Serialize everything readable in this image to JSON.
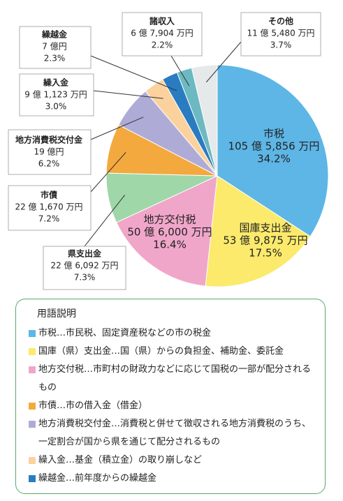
{
  "chart_data": {
    "type": "pie",
    "categories": [
      "市税",
      "国庫支出金",
      "地方交付税",
      "県支出金",
      "市債",
      "地方消費税交付金",
      "繰入金",
      "繰越金",
      "諸収入",
      "その他"
    ],
    "values": [
      34.2,
      17.5,
      16.4,
      7.3,
      7.2,
      6.2,
      3.0,
      2.3,
      2.2,
      3.7
    ],
    "value_labels": [
      "34.2%",
      "17.5%",
      "16.4%",
      "7.3%",
      "7.2%",
      "6.2%",
      "3.0%",
      "2.3%",
      "2.2%",
      "3.7%"
    ],
    "amount_labels": [
      "105 億 5,856 万円",
      "53 億 9,875 万円",
      "50 億 6,000 万円",
      "22 億 6,092 万円",
      "22 億 1,670 万円",
      "19 億円",
      "9 億 1,123 万円",
      "7 億円",
      "6 億 7,904 万円",
      "11 億 5,480 万円"
    ],
    "colors": [
      "#5db6e6",
      "#fbea6c",
      "#f0a6c9",
      "#9fd7a9",
      "#f3a93e",
      "#aeabd7",
      "#fbd29e",
      "#2a7cc1",
      "#6cb9c1",
      "#e6e9e9"
    ]
  },
  "glossary": {
    "title": "用語説明",
    "items": [
      {
        "text": "市税…市民税、固定資産税などの市の税金",
        "color": "#5db6e6"
      },
      {
        "text": "国庫（県）支出金…国（県）からの負担金、補助金、委託金",
        "color": "#fbea6c"
      },
      {
        "text": "地方交付税…市町村の財政力などに応じて国税の一部が配分されるもの",
        "color": "#f0a6c9"
      },
      {
        "text": "市債…市の借入金（借金）",
        "color": "#f3a93e"
      },
      {
        "text": "地方消費税交付金…消費税と併せて徴収される地方消費税のうち、一定割合が国から県を通じて配分されるもの",
        "color": "#aeabd7"
      },
      {
        "text": "繰入金…基金（積立金）の取り崩しなど",
        "color": "#fbd29e"
      },
      {
        "text": "繰越金…前年度からの繰越金",
        "color": "#2a7cc1"
      }
    ]
  }
}
